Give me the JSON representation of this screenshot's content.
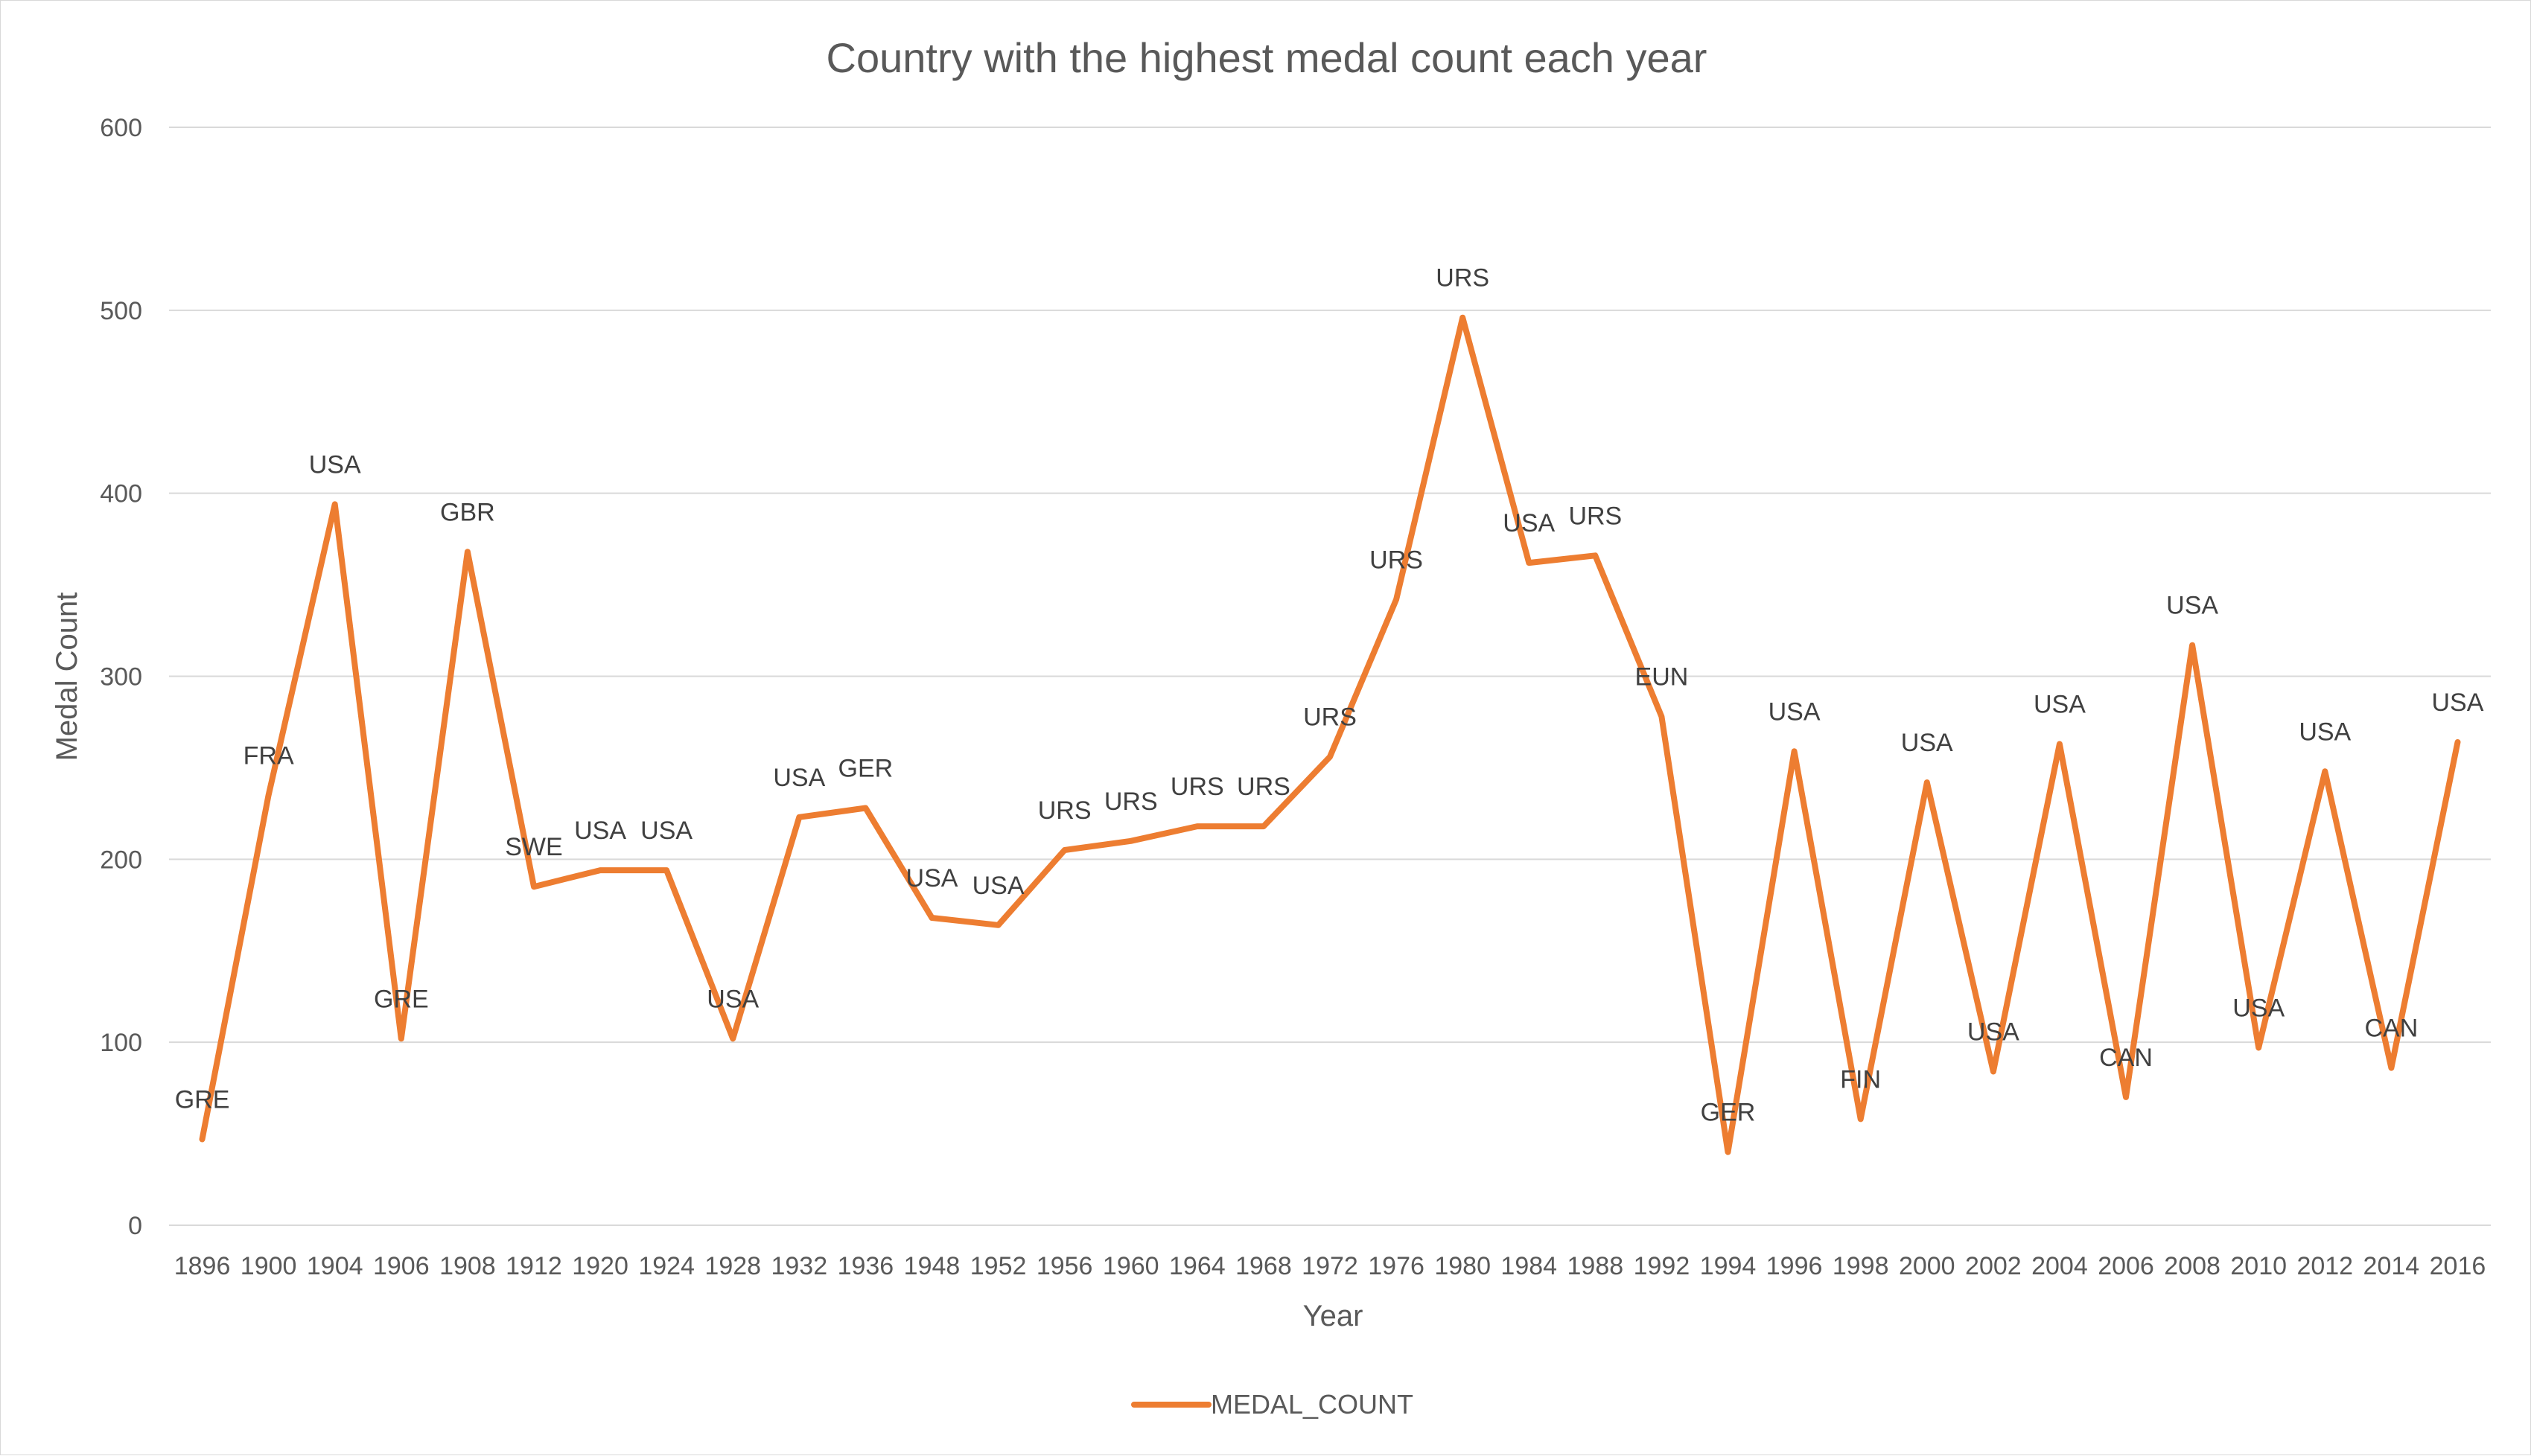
{
  "chart_data": {
    "type": "line",
    "title": "Country with the highest medal count each year",
    "xlabel": "Year",
    "ylabel": "Medal Count",
    "ylim": [
      0,
      600
    ],
    "yticks": [
      "0",
      "100",
      "200",
      "300",
      "400",
      "500",
      "600"
    ],
    "grid": true,
    "legend_position": "bottom",
    "categories": [
      "1896",
      "1900",
      "1904",
      "1906",
      "1908",
      "1912",
      "1920",
      "1924",
      "1928",
      "1932",
      "1936",
      "1948",
      "1952",
      "1956",
      "1960",
      "1964",
      "1968",
      "1972",
      "1976",
      "1980",
      "1984",
      "1988",
      "1992",
      "1994",
      "1996",
      "1998",
      "2000",
      "2002",
      "2004",
      "2006",
      "2008",
      "2010",
      "2012",
      "2014",
      "2016"
    ],
    "series": [
      {
        "name": "MEDAL_COUNT",
        "color": "#ed7d31",
        "values": [
          47,
          235,
          394,
          102,
          368,
          185,
          194,
          194,
          102,
          223,
          228,
          168,
          164,
          205,
          210,
          218,
          218,
          256,
          342,
          496,
          362,
          366,
          278,
          40,
          259,
          58,
          242,
          84,
          263,
          70,
          317,
          97,
          248,
          86,
          264
        ],
        "labels": [
          "GRE",
          "FRA",
          "USA",
          "GRE",
          "GBR",
          "SWE",
          "USA",
          "USA",
          "USA",
          "USA",
          "GER",
          "USA",
          "USA",
          "URS",
          "URS",
          "URS",
          "URS",
          "URS",
          "URS",
          "URS",
          "USA",
          "URS",
          "EUN",
          "GER",
          "USA",
          "FIN",
          "USA",
          "USA",
          "USA",
          "CAN",
          "USA",
          "USA",
          "USA",
          "CAN",
          "USA"
        ]
      }
    ]
  }
}
